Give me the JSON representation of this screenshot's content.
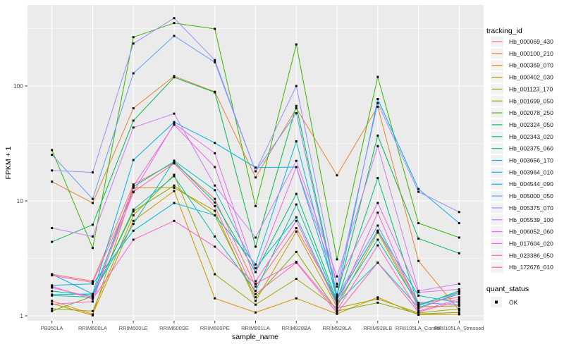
{
  "chart_data": {
    "type": "line",
    "title": "",
    "xlabel": "sample_name",
    "ylabel": "FPKM + 1",
    "y_scale": "log10",
    "y_ticks": [
      1,
      10,
      100
    ],
    "y_tick_labels": [
      "1",
      "10",
      "100"
    ],
    "ylim": [
      1,
      508
    ],
    "grid": "on",
    "legend_position": "right",
    "categories": [
      "PB350LA",
      "RRIM600LA",
      "RRIM600LE",
      "RRIM600SE",
      "RRIM600PE",
      "RRIM901LA",
      "RRIM928BA",
      "RRIM928LA",
      "RRIM928LB",
      "RRII105LA_Control",
      "RRII105LA_Stressed"
    ],
    "legend": {
      "color_title": "tracking_id",
      "shape_title": "quant_status",
      "shape_label": "OK"
    },
    "series": [
      {
        "name": "Hb_000069_430",
        "color": "#F8766D",
        "values": [
          2.3,
          2.0,
          13.9,
          21.5,
          10.4,
          1.8,
          5.8,
          1.38,
          5.5,
          1.28,
          1.45
        ]
      },
      {
        "name": "Hb_000100_210",
        "color": "#EA8331",
        "values": [
          14.7,
          9.6,
          64,
          122,
          89,
          16,
          64,
          16.7,
          66,
          3.0,
          1.12
        ]
      },
      {
        "name": "Hb_000369_070",
        "color": "#D89000",
        "values": [
          1.35,
          1.03,
          6.7,
          12.2,
          1.42,
          1.07,
          1.42,
          1.04,
          1.45,
          1.02,
          1.03
        ]
      },
      {
        "name": "Hb_000402_030",
        "color": "#C09B00",
        "values": [
          1.28,
          1.01,
          13.0,
          13.0,
          8.2,
          1.35,
          5.4,
          1.2,
          5.3,
          1.2,
          1.22
        ]
      },
      {
        "name": "Hb_001123_170",
        "color": "#A3A500",
        "values": [
          1.15,
          1.1,
          7.5,
          16.9,
          2.3,
          1.25,
          2.1,
          1.17,
          1.4,
          1.06,
          1.15
        ]
      },
      {
        "name": "Hb_001699_050",
        "color": "#7CAE00",
        "values": [
          1.1,
          1.48,
          8.1,
          13.6,
          7.5,
          1.45,
          3.6,
          1.1,
          1.3,
          1.04,
          1.07
        ]
      },
      {
        "name": "Hb_002078_250",
        "color": "#39B600",
        "values": [
          27.7,
          3.9,
          266,
          353,
          314,
          9.0,
          230,
          3.1,
          120,
          6.4,
          4.8
        ]
      },
      {
        "name": "Hb_002324_050",
        "color": "#00BB4E",
        "values": [
          4.4,
          6.2,
          50,
          119,
          88,
          4.0,
          67,
          1.5,
          37,
          4.7,
          3.5
        ]
      },
      {
        "name": "Hb_002343_020",
        "color": "#00BF7D",
        "values": [
          1.64,
          1.5,
          13.3,
          22,
          9.7,
          2.4,
          11.5,
          1.35,
          15.8,
          1.22,
          1.65
        ]
      },
      {
        "name": "Hb_002375_060",
        "color": "#00C1A3",
        "values": [
          1.5,
          1.45,
          8.4,
          16.4,
          4.9,
          1.65,
          9.3,
          1.3,
          4.6,
          1.25,
          1.6
        ]
      },
      {
        "name": "Hb_003656_170",
        "color": "#00BFC4",
        "values": [
          1.53,
          1.55,
          6.3,
          22.4,
          12.4,
          2.6,
          7.2,
          1.28,
          2.9,
          1.18,
          1.55
        ]
      },
      {
        "name": "Hb_003964_010",
        "color": "#00BAE0",
        "values": [
          1.84,
          1.9,
          5.5,
          9.6,
          7.5,
          2.8,
          33,
          1.4,
          5.5,
          1.5,
          1.3
        ]
      },
      {
        "name": "Hb_004544_090",
        "color": "#00B0F6",
        "values": [
          2.3,
          1.55,
          22.7,
          48.5,
          32,
          19.5,
          19.7,
          1.53,
          77,
          12.7,
          6.4
        ]
      },
      {
        "name": "Hb_005000_050",
        "color": "#619CFF",
        "values": [
          25.2,
          10.4,
          129,
          273,
          161,
          18.1,
          58,
          1.45,
          6.1,
          1.3,
          1.25
        ]
      },
      {
        "name": "Hb_005375_070",
        "color": "#9590FF",
        "values": [
          18.4,
          17.7,
          234,
          390,
          168,
          18.1,
          100,
          1.8,
          71,
          12.0,
          8.0
        ]
      },
      {
        "name": "Hb_005539_100",
        "color": "#C77CFF",
        "values": [
          5.8,
          4.9,
          43.5,
          57.5,
          13.6,
          4.8,
          22.3,
          2.2,
          30,
          1.65,
          1.9
        ]
      },
      {
        "name": "Hb_006052_060",
        "color": "#E76BF3",
        "values": [
          1.76,
          1.45,
          11.9,
          47,
          26,
          2.4,
          19.7,
          1.9,
          9.6,
          1.6,
          1.7
        ]
      },
      {
        "name": "Hb_017604_020",
        "color": "#F763E0",
        "values": [
          1.26,
          1.33,
          13.5,
          46,
          19.7,
          2.0,
          6.7,
          1.25,
          7.9,
          1.15,
          1.6
        ]
      },
      {
        "name": "Hb_023386_050",
        "color": "#FF61CC",
        "values": [
          1.8,
          1.4,
          4.6,
          6.7,
          4.0,
          1.9,
          2.95,
          1.12,
          4.1,
          1.1,
          1.4
        ]
      },
      {
        "name": "Hb_172676_010",
        "color": "#FF65AE",
        "values": [
          2.25,
          1.95,
          12.0,
          21.2,
          9.0,
          1.55,
          2.9,
          1.06,
          2.9,
          1.08,
          1.35
        ]
      }
    ]
  },
  "theme": {
    "panel_bg": "#EBEBEB",
    "grid_color": "#FFFFFF",
    "axis_text_color": "#4D4D4D",
    "axis_title_color": "#000000",
    "tick_color": "#333333",
    "point_color": "#0A0A0A",
    "legend_key_bg": "#F2F2F2"
  }
}
